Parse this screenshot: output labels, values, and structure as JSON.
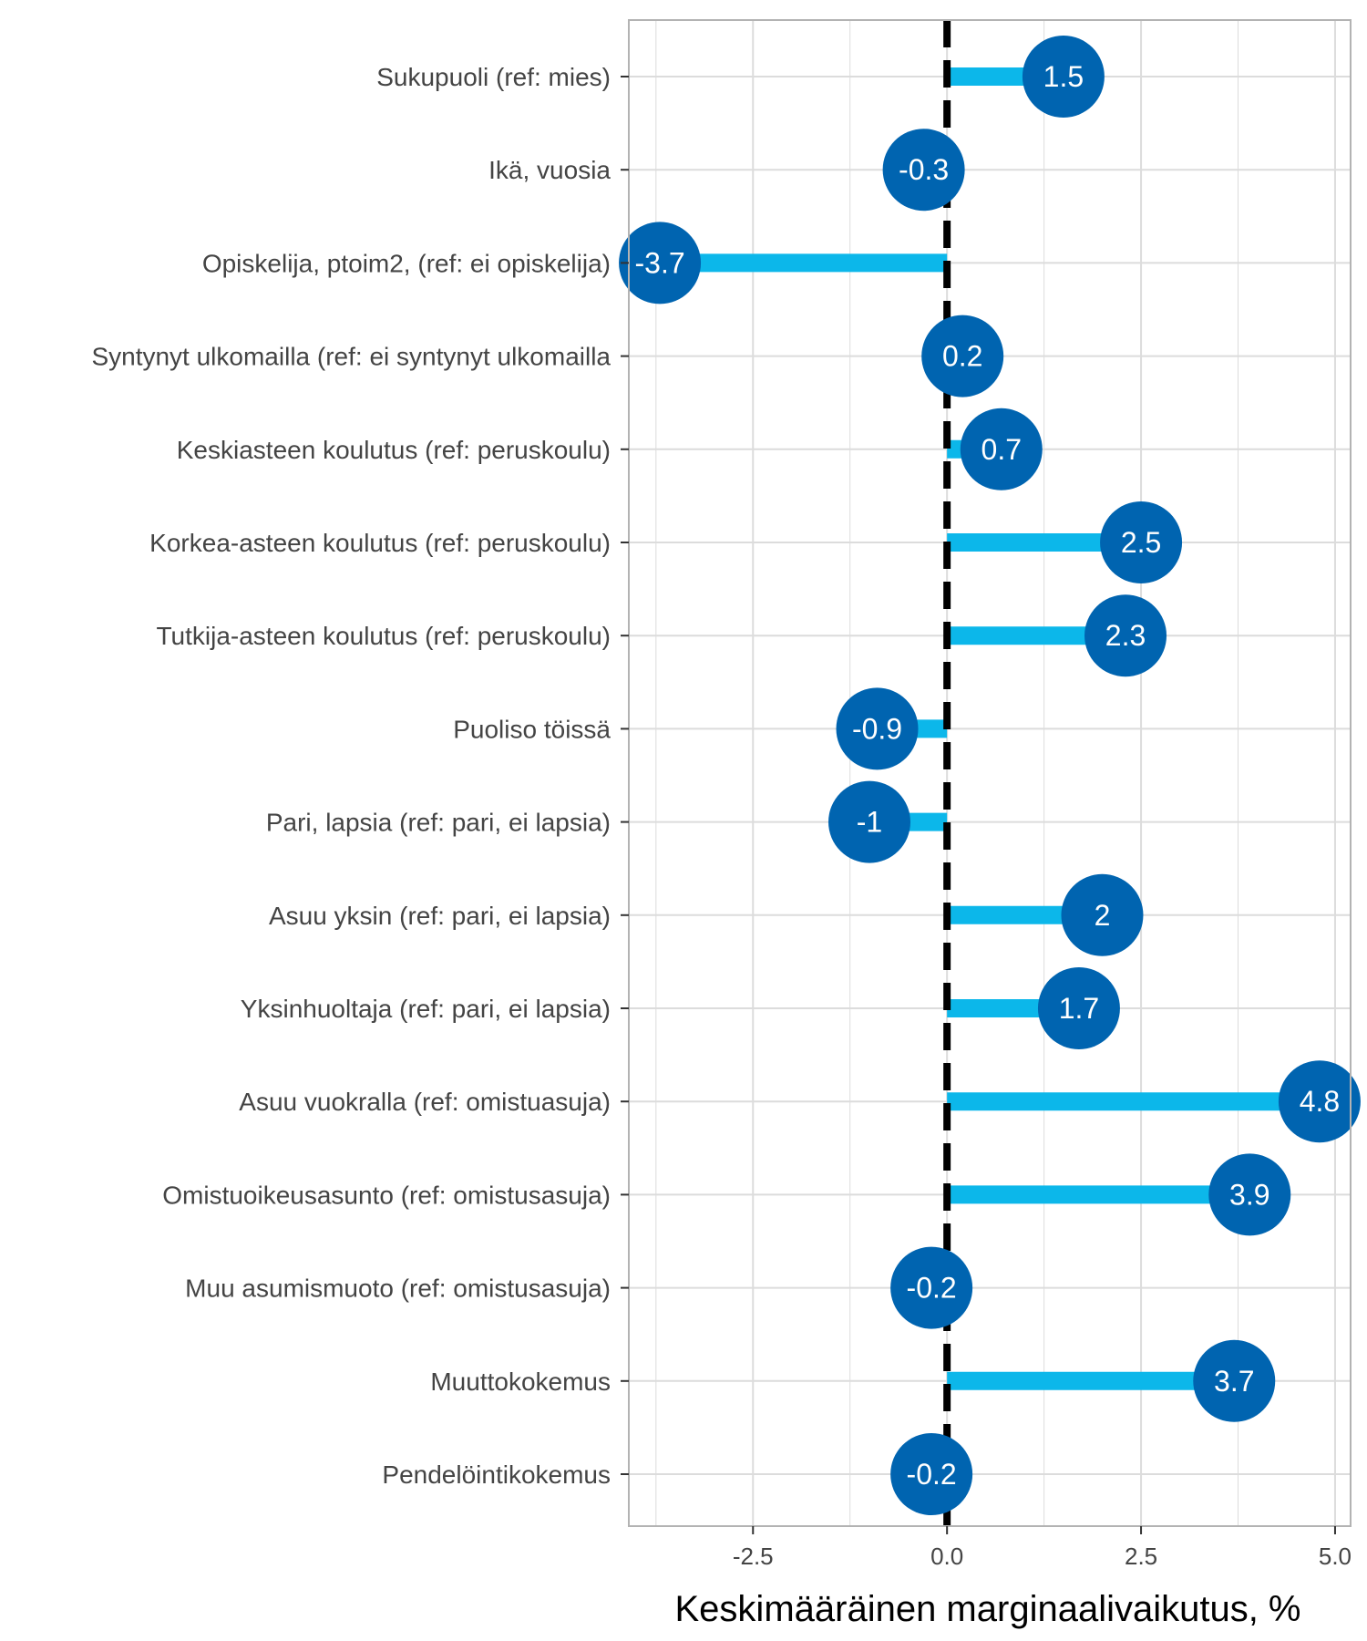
{
  "chart_data": {
    "type": "lollipop",
    "orientation": "horizontal",
    "categories": [
      "Sukupuoli (ref: mies)",
      "Ikä, vuosia",
      "Opiskelija, ptoim2, (ref: ei opiskelija)",
      "Syntynyt ulkomailla (ref: ei syntynyt ulkomailla",
      "Keskiasteen koulutus (ref: peruskoulu)",
      "Korkea-asteen koulutus (ref: peruskoulu)",
      "Tutkija-asteen koulutus (ref: peruskoulu)",
      "Puoliso töissä",
      "Pari, lapsia (ref: pari, ei lapsia)",
      "Asuu yksin (ref: pari, ei lapsia)",
      "Yksinhuoltaja (ref: pari, ei lapsia)",
      "Asuu vuokralla (ref: omistuasuja)",
      "Omistuoikeusasunto (ref: omistusasuja)",
      "Muu asumismuoto (ref: omistusasuja)",
      "Muuttokokemus",
      "Pendelöintikokemus"
    ],
    "values": [
      1.5,
      -0.3,
      -3.7,
      0.2,
      0.7,
      2.5,
      2.3,
      -0.9,
      -1,
      2,
      1.7,
      4.8,
      3.9,
      -0.2,
      3.7,
      -0.2
    ],
    "value_labels": [
      "1.5",
      "-0.3",
      "-3.7",
      "0.2",
      "0.7",
      "2.5",
      "2.3",
      "-0.9",
      "-1",
      "2",
      "1.7",
      "4.8",
      "3.9",
      "-0.2",
      "3.7",
      "-0.2"
    ],
    "xlabel": "Keskimääräinen marginaalivaikutus, %",
    "ylabel": "",
    "xlim": [
      -4.1,
      5.2
    ],
    "xticks": [
      -2.5,
      0,
      2.5,
      5
    ],
    "xtick_labels": [
      "-2.5",
      "0.0",
      "2.5",
      "5.0"
    ],
    "reference_line": 0,
    "grid": true,
    "colors": {
      "stem": "#0cb7ea",
      "point": "#0064b0",
      "point_text": "#ffffff",
      "reference_line": "#000000",
      "grid": "#dcdcdc",
      "panel_border": "#b3b3b3"
    }
  }
}
